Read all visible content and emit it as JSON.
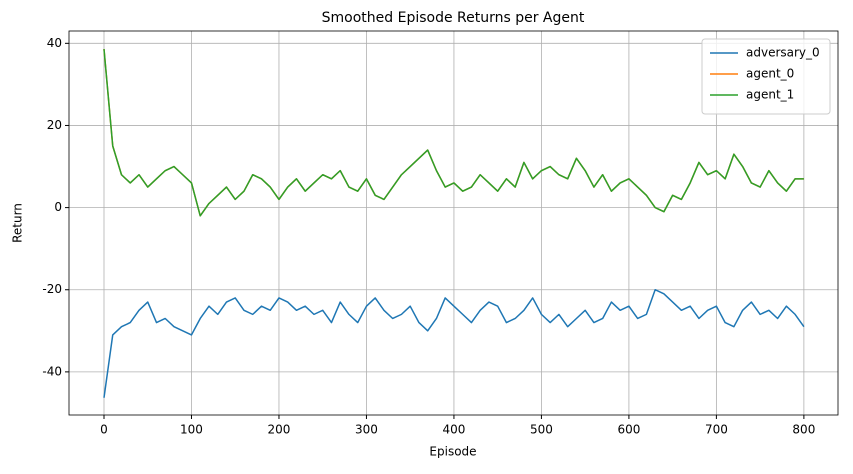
{
  "chart_data": {
    "type": "line",
    "title": "Smoothed Episode Returns per Agent",
    "x_label": "Episode",
    "y_label": "Return",
    "x": [
      0,
      10,
      20,
      30,
      40,
      50,
      60,
      70,
      80,
      90,
      100,
      110,
      120,
      130,
      140,
      150,
      160,
      170,
      180,
      190,
      200,
      210,
      220,
      230,
      240,
      250,
      260,
      270,
      280,
      290,
      300,
      310,
      320,
      330,
      340,
      350,
      360,
      370,
      380,
      390,
      400,
      410,
      420,
      430,
      440,
      450,
      460,
      470,
      480,
      490,
      500,
      510,
      520,
      530,
      540,
      550,
      560,
      570,
      580,
      590,
      600,
      610,
      620,
      630,
      640,
      650,
      660,
      670,
      680,
      690,
      700,
      710,
      720,
      730,
      740,
      750,
      760,
      770,
      780,
      790,
      800
    ],
    "series": [
      {
        "name": "adversary_0",
        "color": "#1f77b4",
        "values": [
          -46.3,
          -31,
          -29,
          -28,
          -25,
          -23,
          -28,
          -27,
          -29,
          -30,
          -31,
          -27,
          -24,
          -26,
          -23,
          -22,
          -25,
          -26,
          -24,
          -25,
          -22,
          -23,
          -25,
          -24,
          -26,
          -25,
          -28,
          -23,
          -26,
          -28,
          -24,
          -22,
          -25,
          -27,
          -26,
          -24,
          -28,
          -30,
          -27,
          -22,
          -24,
          -26,
          -28,
          -25,
          -23,
          -24,
          -28,
          -27,
          -25,
          -22,
          -26,
          -28,
          -26,
          -29,
          -27,
          -25,
          -28,
          -27,
          -23,
          -25,
          -24,
          -27,
          -26,
          -20,
          -21,
          -23,
          -25,
          -24,
          -27,
          -25,
          -24,
          -28,
          -29,
          -25,
          -23,
          -26,
          -25,
          -27,
          -24,
          -26,
          -29
        ]
      },
      {
        "name": "agent_0",
        "color": "#ff7f0e",
        "values": [
          38.6,
          15,
          8,
          6,
          8,
          5,
          7,
          9,
          10,
          8,
          6,
          -2,
          1,
          3,
          5,
          2,
          4,
          8,
          7,
          5,
          2,
          5,
          7,
          4,
          6,
          8,
          7,
          9,
          5,
          4,
          7,
          3,
          2,
          5,
          8,
          10,
          12,
          14,
          9,
          5,
          6,
          4,
          5,
          8,
          6,
          4,
          7,
          5,
          11,
          7,
          9,
          10,
          8,
          7,
          12,
          9,
          5,
          8,
          4,
          6,
          7,
          5,
          3,
          0,
          -1,
          3,
          2,
          6,
          11,
          8,
          9,
          7,
          13,
          10,
          6,
          5,
          9,
          6,
          4,
          7,
          7
        ]
      },
      {
        "name": "agent_1",
        "color": "#2ca02c",
        "values": [
          38.6,
          15,
          8,
          6,
          8,
          5,
          7,
          9,
          10,
          8,
          6,
          -2,
          1,
          3,
          5,
          2,
          4,
          8,
          7,
          5,
          2,
          5,
          7,
          4,
          6,
          8,
          7,
          9,
          5,
          4,
          7,
          3,
          2,
          5,
          8,
          10,
          12,
          14,
          9,
          5,
          6,
          4,
          5,
          8,
          6,
          4,
          7,
          5,
          11,
          7,
          9,
          10,
          8,
          7,
          12,
          9,
          5,
          8,
          4,
          6,
          7,
          5,
          3,
          0,
          -1,
          3,
          2,
          6,
          11,
          8,
          9,
          7,
          13,
          10,
          6,
          5,
          9,
          6,
          4,
          7,
          7
        ]
      }
    ],
    "xlim": [
      -40,
      839
    ],
    "ylim": [
      -50.5,
      43
    ],
    "xticks": [
      0,
      100,
      200,
      300,
      400,
      500,
      600,
      700,
      800
    ],
    "yticks": [
      -40,
      -20,
      0,
      20,
      40
    ],
    "grid": true,
    "legend": "upper right"
  }
}
